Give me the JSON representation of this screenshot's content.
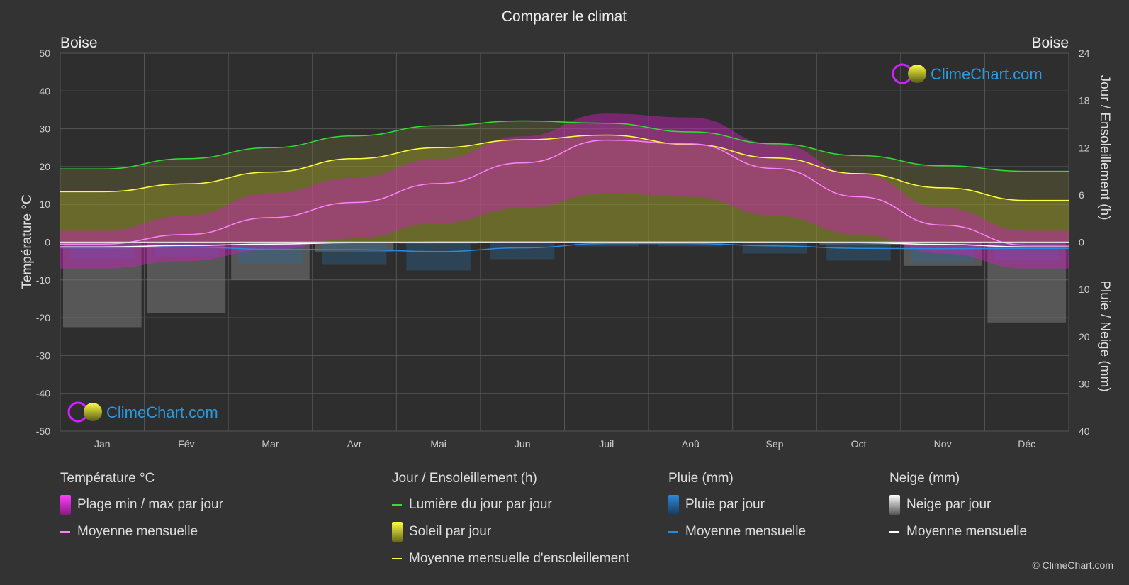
{
  "header": {
    "title": "Comparer le climat",
    "location_left": "Boise",
    "location_right": "Boise"
  },
  "brand": {
    "logo_text": "ClimeChart.com",
    "copyright": "© ClimeChart.com"
  },
  "legend": {
    "temperature": {
      "heading": "Température °C",
      "range_label": "Plage min / max par jour",
      "mean_label": "Moyenne mensuelle"
    },
    "sun": {
      "heading": "Jour / Ensoleillement (h)",
      "daylight_label": "Lumière du jour par jour",
      "sunshine_label": "Soleil par jour",
      "sunshine_mean_label": "Moyenne mensuelle d'ensoleillement"
    },
    "rain": {
      "heading": "Pluie (mm)",
      "daily_label": "Pluie par jour",
      "mean_label": "Moyenne mensuelle"
    },
    "snow": {
      "heading": "Neige (mm)",
      "daily_label": "Neige par jour",
      "mean_label": "Moyenne mensuelle"
    }
  },
  "colors": {
    "background": "#333333",
    "grid": "#5a5a5a",
    "temp_range": "#d020c0",
    "temp_mean": "#ff80ff",
    "daylight": "#33dd33",
    "sunshine_fill": "#a8a82e",
    "sunshine_mean": "#ffff40",
    "rain": "#2a8adf",
    "snow": "#aaaaaa",
    "snow_mean": "#ffffff",
    "brand_blue": "#2a9ae0"
  },
  "chart_data": {
    "type": "area",
    "title": "Comparer le climat",
    "categories": [
      "Jan",
      "Fév",
      "Mar",
      "Avr",
      "Mai",
      "Jun",
      "Juil",
      "Aoû",
      "Sep",
      "Oct",
      "Nov",
      "Déc"
    ],
    "axes": {
      "y_left": {
        "label": "Température °C",
        "range": [
          -50,
          50
        ],
        "ticks": [
          50,
          40,
          30,
          20,
          10,
          0,
          -10,
          -20,
          -30,
          -40,
          -50
        ]
      },
      "y_right_top": {
        "label": "Jour / Ensoleillement (h)",
        "range": [
          0,
          24
        ],
        "ticks": [
          24,
          18,
          12,
          6,
          0
        ]
      },
      "y_right_bottom": {
        "label": "Pluie / Neige (mm)",
        "range": [
          0,
          40
        ],
        "ticks": [
          10,
          20,
          30,
          40
        ]
      }
    },
    "grid": true,
    "series": [
      {
        "name": "Plage min / max par jour (max)",
        "unit": "°C",
        "values": [
          3,
          7,
          13,
          17,
          22,
          28,
          34,
          33,
          26,
          18,
          9,
          3
        ]
      },
      {
        "name": "Plage min / max par jour (min)",
        "unit": "°C",
        "values": [
          -7,
          -5,
          -2,
          1,
          5,
          9,
          13,
          12,
          7,
          2,
          -3,
          -7
        ]
      },
      {
        "name": "Moyenne mensuelle (température)",
        "unit": "°C",
        "values": [
          -0.5,
          2.0,
          6.5,
          10.5,
          15.5,
          21.0,
          27.0,
          26.0,
          19.5,
          12.0,
          4.5,
          -0.8
        ]
      },
      {
        "name": "Lumière du jour par jour",
        "unit": "h",
        "values": [
          9.3,
          10.6,
          12.0,
          13.5,
          14.8,
          15.4,
          15.1,
          14.0,
          12.5,
          11.0,
          9.7,
          9.0
        ]
      },
      {
        "name": "Soleil par jour",
        "unit": "h",
        "values": [
          6.4,
          7.4,
          8.9,
          10.6,
          12.0,
          13.0,
          13.6,
          12.4,
          10.7,
          8.7,
          6.9,
          5.3
        ]
      },
      {
        "name": "Moyenne mensuelle d'ensoleillement",
        "unit": "h",
        "values": [
          6.4,
          7.4,
          8.9,
          10.6,
          12.0,
          13.0,
          13.6,
          12.4,
          10.7,
          8.7,
          6.9,
          5.3
        ]
      },
      {
        "name": "Pluie par jour",
        "unit": "mm",
        "values": [
          1.2,
          1.0,
          1.5,
          1.6,
          2.0,
          1.2,
          0.3,
          0.3,
          0.8,
          1.3,
          1.4,
          1.3
        ]
      },
      {
        "name": "Moyenne mensuelle (pluie)",
        "unit": "mm",
        "values": [
          1.2,
          1.0,
          1.5,
          1.6,
          2.0,
          1.2,
          0.3,
          0.3,
          0.8,
          1.3,
          1.4,
          1.3
        ]
      },
      {
        "name": "Neige par jour",
        "unit": "mm",
        "values": [
          18,
          15,
          8,
          2,
          0.3,
          0,
          0,
          0,
          0,
          0.5,
          5,
          17
        ]
      },
      {
        "name": "Moyenne mensuelle (neige)",
        "unit": "mm",
        "values": [
          1.0,
          0.7,
          0.4,
          0.1,
          0,
          0,
          0,
          0,
          0,
          0.1,
          0.5,
          1.0
        ]
      }
    ]
  }
}
